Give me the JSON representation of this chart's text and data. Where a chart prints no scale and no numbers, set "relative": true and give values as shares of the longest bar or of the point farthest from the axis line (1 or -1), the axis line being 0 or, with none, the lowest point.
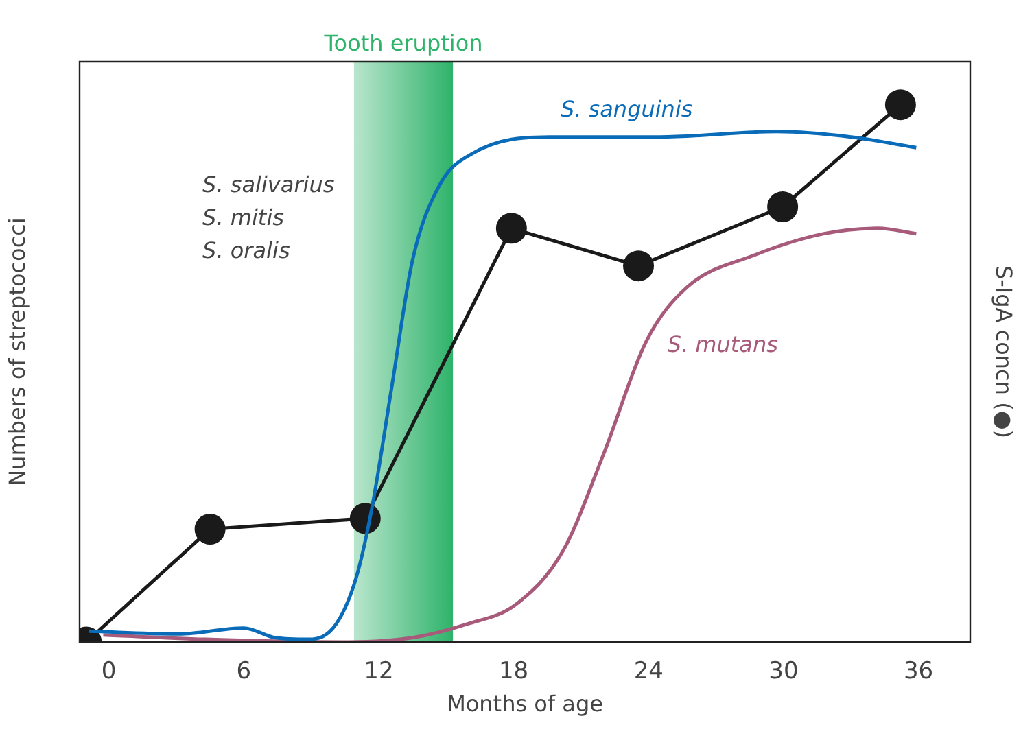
{
  "chart_data": {
    "type": "line",
    "relative": true,
    "xlabel": "Months of age",
    "ylabel": "Numbers of streptococci",
    "y2label": "S-IgA concn (●)",
    "xlim": [
      -1.3,
      38.3
    ],
    "xticks": [
      0,
      6,
      12,
      18,
      24,
      30,
      36
    ],
    "grid": false,
    "legend": false,
    "bands": [
      {
        "axis": "x",
        "from": 10.9,
        "to": 15.3,
        "label": "Tooth eruption",
        "color": "#2eb36a"
      }
    ],
    "annotations": [
      "S. salivarius",
      "S. mitis",
      "S. oralis"
    ],
    "series": [
      {
        "name": "S. sanguinis",
        "color": "#0a6cb8",
        "marker": "none",
        "x": [
          -0.9,
          3.1,
          6,
          7.4,
          8.9,
          10.1,
          11,
          11.7,
          12.6,
          13.5,
          14.7,
          16.2,
          19.6,
          24.5,
          29.7,
          33,
          35.9
        ],
        "values": [
          0.02,
          0.015,
          0.026,
          0.008,
          0.005,
          0.033,
          0.12,
          0.25,
          0.48,
          0.71,
          0.85,
          0.91,
          0.94,
          0.94,
          0.95,
          0.94,
          0.92
        ]
      },
      {
        "name": "S. mutans",
        "color": "#a85a7a",
        "marker": "none",
        "x": [
          -0.25,
          4.3,
          10.4,
          13.5,
          15.9,
          18.1,
          20.2,
          22,
          23.9,
          25.7,
          28.7,
          31.8,
          34.2,
          35.9
        ],
        "values": [
          0.013,
          0.005,
          0,
          0.008,
          0.033,
          0.07,
          0.17,
          0.35,
          0.56,
          0.66,
          0.72,
          0.76,
          0.77,
          0.76
        ]
      },
      {
        "color": "#1a1a1a",
        "marker": "circle",
        "x": [
          -1,
          4.5,
          11.4,
          17.9,
          23.55,
          29.96,
          35.2
        ],
        "values": [
          0,
          0.21,
          0.23,
          0.77,
          0.7,
          0.81,
          1
        ]
      }
    ]
  }
}
